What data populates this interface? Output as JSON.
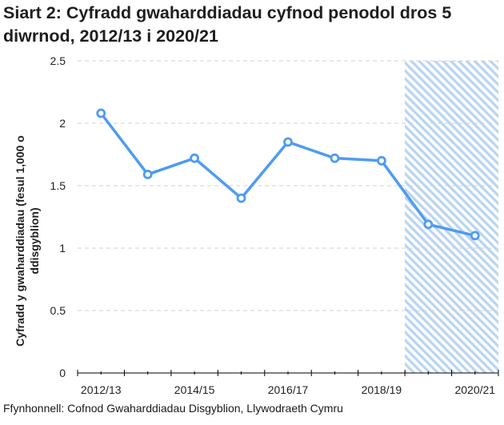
{
  "header": {
    "title": "Siart 2: Cyfradd gwaharddiadau cyfnod penodol dros 5 diwrnod, 2012/13 i 2020/21"
  },
  "footer": {
    "source": "Ffynhonnell: Cofnod Gwaharddiadau Disgyblion, Llywodraeth Cymru"
  },
  "colors": {
    "line": "#4f9bf2",
    "hatch": "#b7d4f2",
    "grid": "#d0d0d0",
    "axis": "#000000"
  },
  "chart_data": {
    "type": "line",
    "title": "Siart 2: Cyfradd gwaharddiadau cyfnod penodol dros 5 diwrnod, 2012/13 i 2020/21",
    "xlabel": "",
    "ylabel": "Cyfradd y gwaharddiadau (fesul 1,000 o ddisgyblion)",
    "ylabel_lines": [
      "Cyfradd y gwaharddiadau (fesul 1,000 o",
      "ddisgyblion)"
    ],
    "categories": [
      "2012/13",
      "2013/14",
      "2014/15",
      "2015/16",
      "2016/17",
      "2017/18",
      "2018/19",
      "2019/20",
      "2020/21"
    ],
    "x_tick_labels_shown": [
      "2012/13",
      "2014/15",
      "2016/17",
      "2018/19",
      "2020/21"
    ],
    "series": [
      {
        "name": "Cyfradd gwaharddiadau cyfnod penodol dros 5 diwrnod",
        "values": [
          2.08,
          1.59,
          1.72,
          1.4,
          1.85,
          1.72,
          1.7,
          1.19,
          1.1
        ]
      }
    ],
    "ylim": [
      0,
      2.5
    ],
    "y_ticks": [
      "0",
      "0.5",
      "1",
      "1.5",
      "2",
      "2.5"
    ],
    "grid": true,
    "legend": null,
    "annotations": [
      {
        "type": "hatched-region",
        "from": "2019/20",
        "to": "2020/21"
      }
    ],
    "source": "Ffynhonnell: Cofnod Gwaharddiadau Disgyblion, Llywodraeth Cymru"
  }
}
